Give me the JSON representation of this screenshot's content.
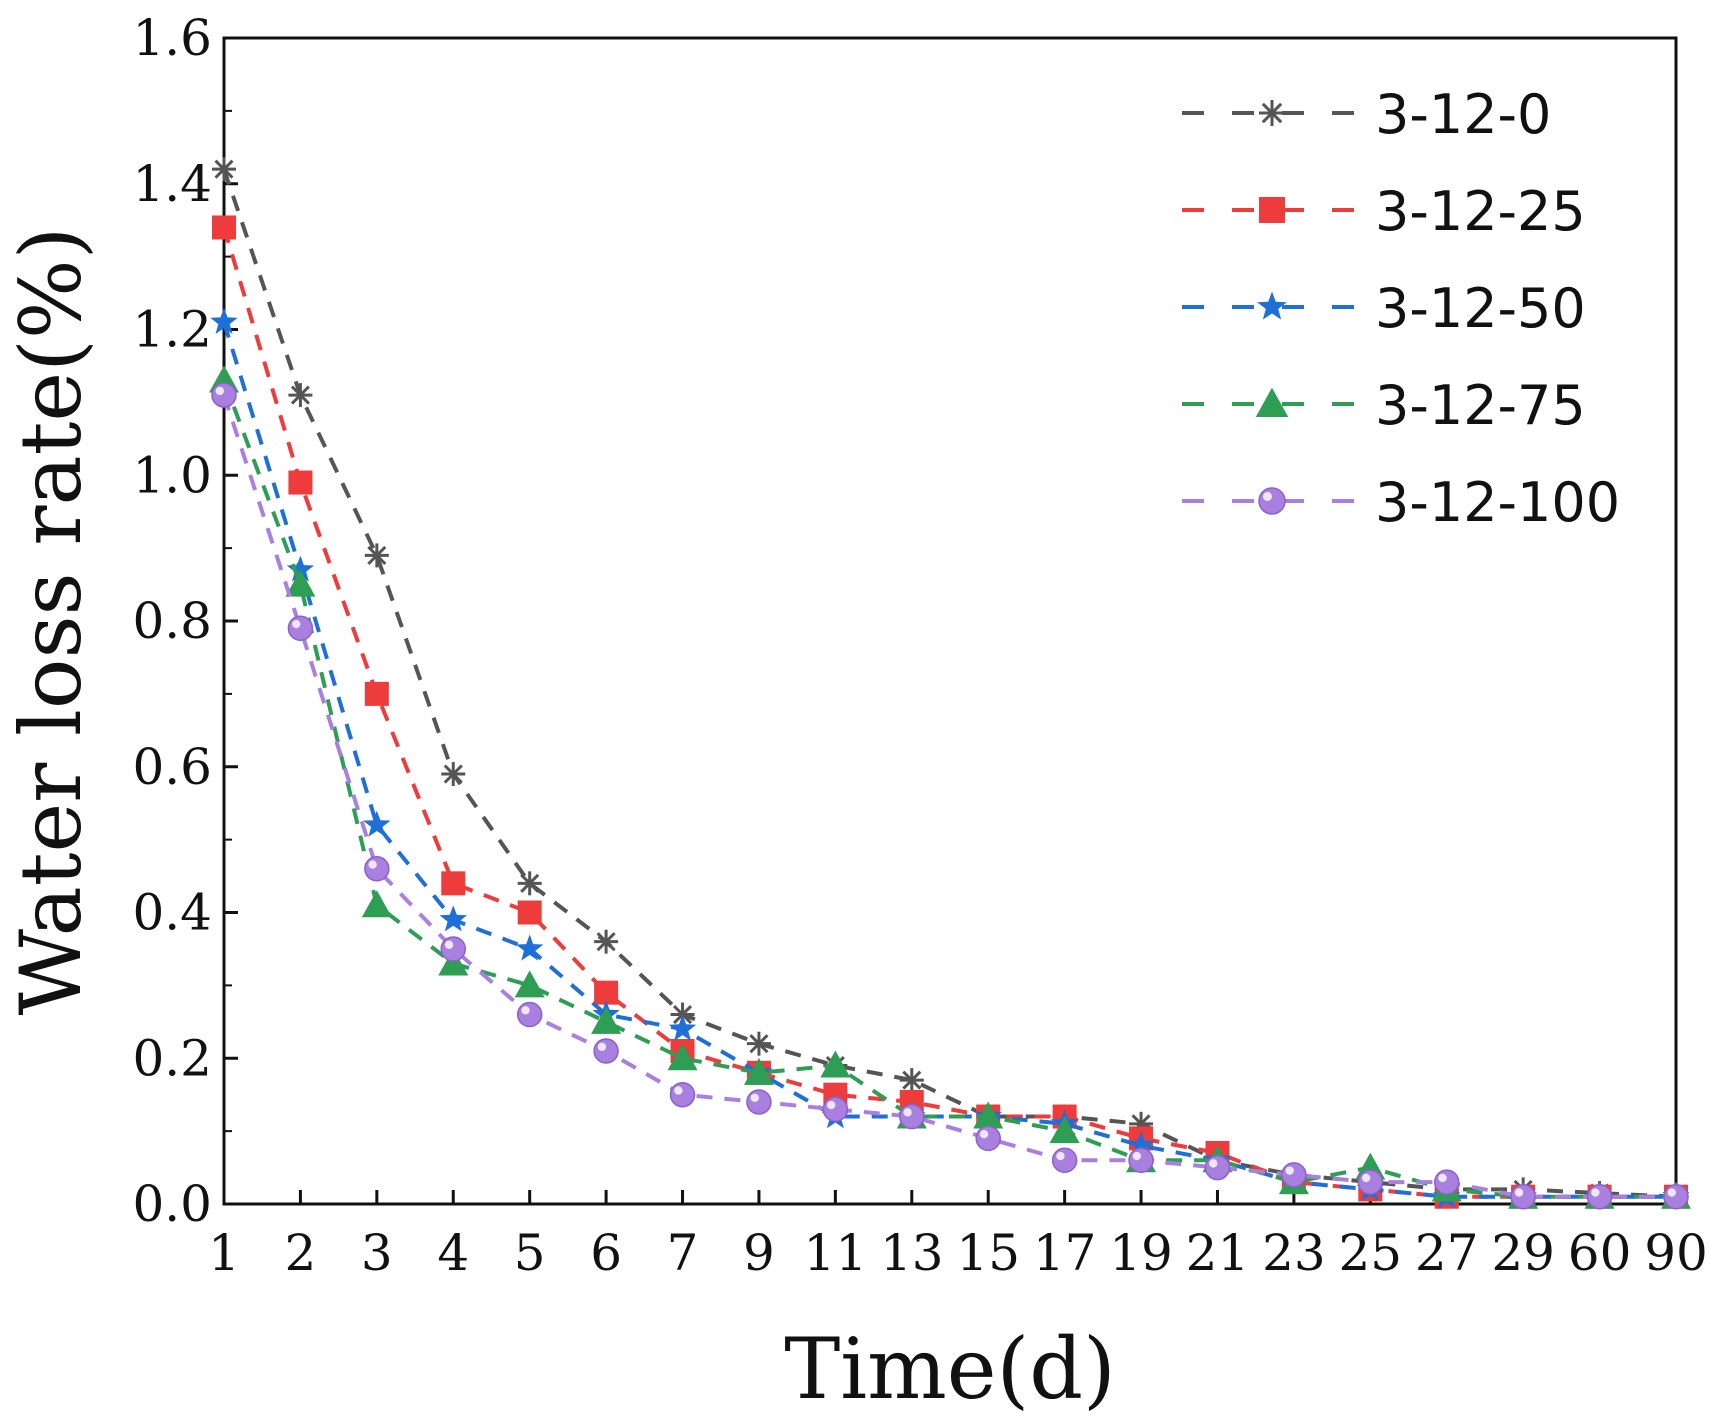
{
  "chart_data": {
    "type": "line",
    "title": "",
    "xlabel": "Time(d)",
    "ylabel": "Water loss rate(%)",
    "categories": [
      "1",
      "2",
      "3",
      "4",
      "5",
      "6",
      "7",
      "9",
      "11",
      "13",
      "15",
      "17",
      "19",
      "21",
      "23",
      "25",
      "27",
      "29",
      "60",
      "90"
    ],
    "ylim": [
      0,
      1.6
    ],
    "yticks": [
      "0.0",
      "0.2",
      "0.4",
      "0.6",
      "0.8",
      "1.0",
      "1.2",
      "1.4",
      "1.6"
    ],
    "legend_position": "top-right",
    "series": [
      {
        "name": "3-12-0",
        "color": "#555555",
        "marker": "asterisk",
        "values": [
          1.42,
          1.11,
          0.89,
          0.59,
          0.44,
          0.36,
          0.26,
          0.22,
          0.19,
          0.17,
          0.12,
          0.12,
          0.11,
          0.06,
          0.04,
          0.03,
          0.02,
          0.02,
          0.015,
          0.01
        ]
      },
      {
        "name": "3-12-25",
        "color": "#ee3b3b",
        "marker": "square",
        "values": [
          1.34,
          0.99,
          0.7,
          0.44,
          0.4,
          0.29,
          0.21,
          0.18,
          0.15,
          0.14,
          0.12,
          0.12,
          0.09,
          0.07,
          0.03,
          0.02,
          0.01,
          0.01,
          0.01,
          0.01
        ]
      },
      {
        "name": "3-12-50",
        "color": "#1f6fd8",
        "marker": "star",
        "values": [
          1.21,
          0.87,
          0.52,
          0.39,
          0.35,
          0.26,
          0.24,
          0.18,
          0.12,
          0.12,
          0.12,
          0.11,
          0.08,
          0.06,
          0.03,
          0.02,
          0.01,
          0.01,
          0.01,
          0.01
        ]
      },
      {
        "name": "3-12-75",
        "color": "#2e9e55",
        "marker": "triangle",
        "values": [
          1.13,
          0.85,
          0.41,
          0.33,
          0.3,
          0.25,
          0.2,
          0.18,
          0.19,
          0.12,
          0.12,
          0.1,
          0.06,
          0.06,
          0.03,
          0.05,
          0.02,
          0.01,
          0.01,
          0.01
        ]
      },
      {
        "name": "3-12-100",
        "color": "#a97fe0",
        "marker": "circle",
        "values": [
          1.11,
          0.79,
          0.46,
          0.35,
          0.26,
          0.21,
          0.15,
          0.14,
          0.13,
          0.12,
          0.09,
          0.06,
          0.06,
          0.05,
          0.04,
          0.03,
          0.03,
          0.01,
          0.01,
          0.01
        ]
      }
    ]
  }
}
